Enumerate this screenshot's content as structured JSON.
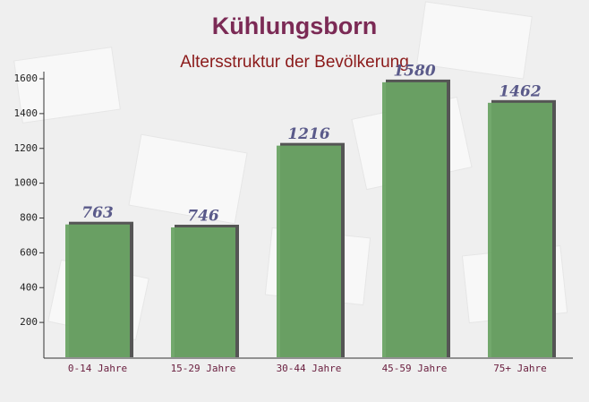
{
  "chart_data": {
    "type": "bar",
    "title": "Kühlungsborn",
    "subtitle": "Altersstruktur der Bevölkerung",
    "categories": [
      "0-14 Jahre",
      "15-29 Jahre",
      "30-44 Jahre",
      "45-59 Jahre",
      "75+ Jahre"
    ],
    "values": [
      763,
      746,
      1216,
      1580,
      1462
    ],
    "color": "#6aa364",
    "ylim": [
      0,
      1600
    ],
    "yticks": [
      200,
      400,
      600,
      800,
      1000,
      1200,
      1400,
      1600
    ]
  }
}
